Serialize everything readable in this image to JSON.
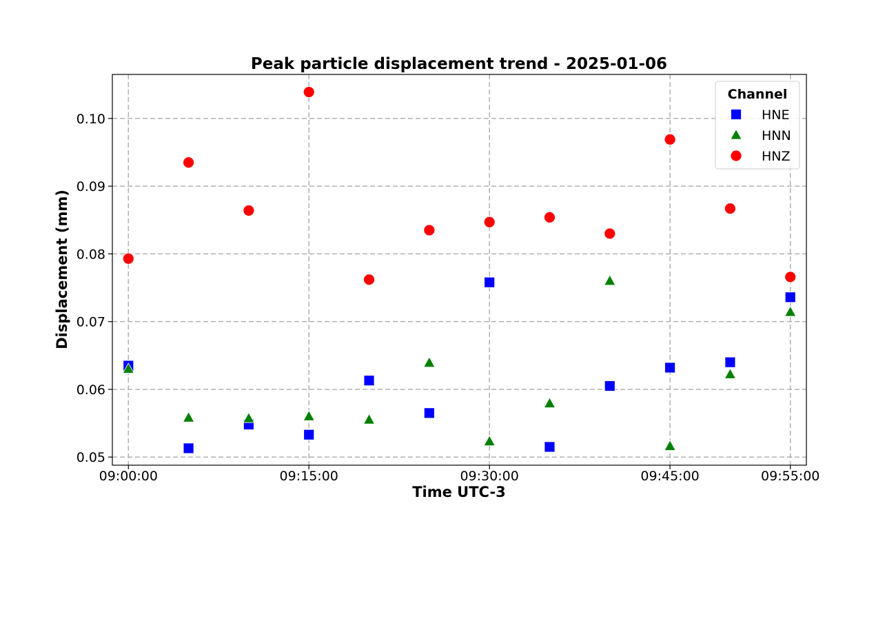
{
  "chart_data": {
    "type": "scatter",
    "title": "Peak particle displacement trend - 2025-01-06",
    "xlabel": "Time UTC-3",
    "ylabel": "Displacement (mm)",
    "x": [
      "09:00:00",
      "09:05:00",
      "09:10:00",
      "09:15:00",
      "09:20:00",
      "09:25:00",
      "09:30:00",
      "09:35:00",
      "09:40:00",
      "09:45:00",
      "09:50:00",
      "09:55:00"
    ],
    "x_ticks": [
      "09:00:00",
      "09:15:00",
      "09:30:00",
      "09:45:00",
      "09:55:00"
    ],
    "xlim": [
      "08:58:40",
      "09:56:20"
    ],
    "y_ticks": [
      0.05,
      0.06,
      0.07,
      0.08,
      0.09,
      0.1
    ],
    "y_tick_labels": [
      "0.05",
      "0.06",
      "0.07",
      "0.08",
      "0.09",
      "0.10"
    ],
    "ylim": [
      0.0488,
      0.1065
    ],
    "grid": true,
    "legend": {
      "title": "Channel",
      "position": "top-right"
    },
    "series": [
      {
        "name": "HNE",
        "marker": "square",
        "color": "#0000ff",
        "values": [
          0.0635,
          0.0513,
          0.0548,
          0.0533,
          0.0613,
          0.0565,
          0.0758,
          0.0515,
          0.0605,
          0.0632,
          0.064,
          0.0736
        ]
      },
      {
        "name": "HNN",
        "marker": "triangle",
        "color": "#008000",
        "values": [
          0.063,
          0.0558,
          0.0557,
          0.056,
          0.0555,
          0.0639,
          0.0523,
          0.0579,
          0.076,
          0.0516,
          0.0622,
          0.0714
        ]
      },
      {
        "name": "HNZ",
        "marker": "circle",
        "color": "#ff0000",
        "values": [
          0.0793,
          0.0935,
          0.0864,
          0.1039,
          0.0762,
          0.0835,
          0.0847,
          0.0854,
          0.083,
          0.0969,
          0.0867,
          0.0766
        ]
      }
    ]
  }
}
